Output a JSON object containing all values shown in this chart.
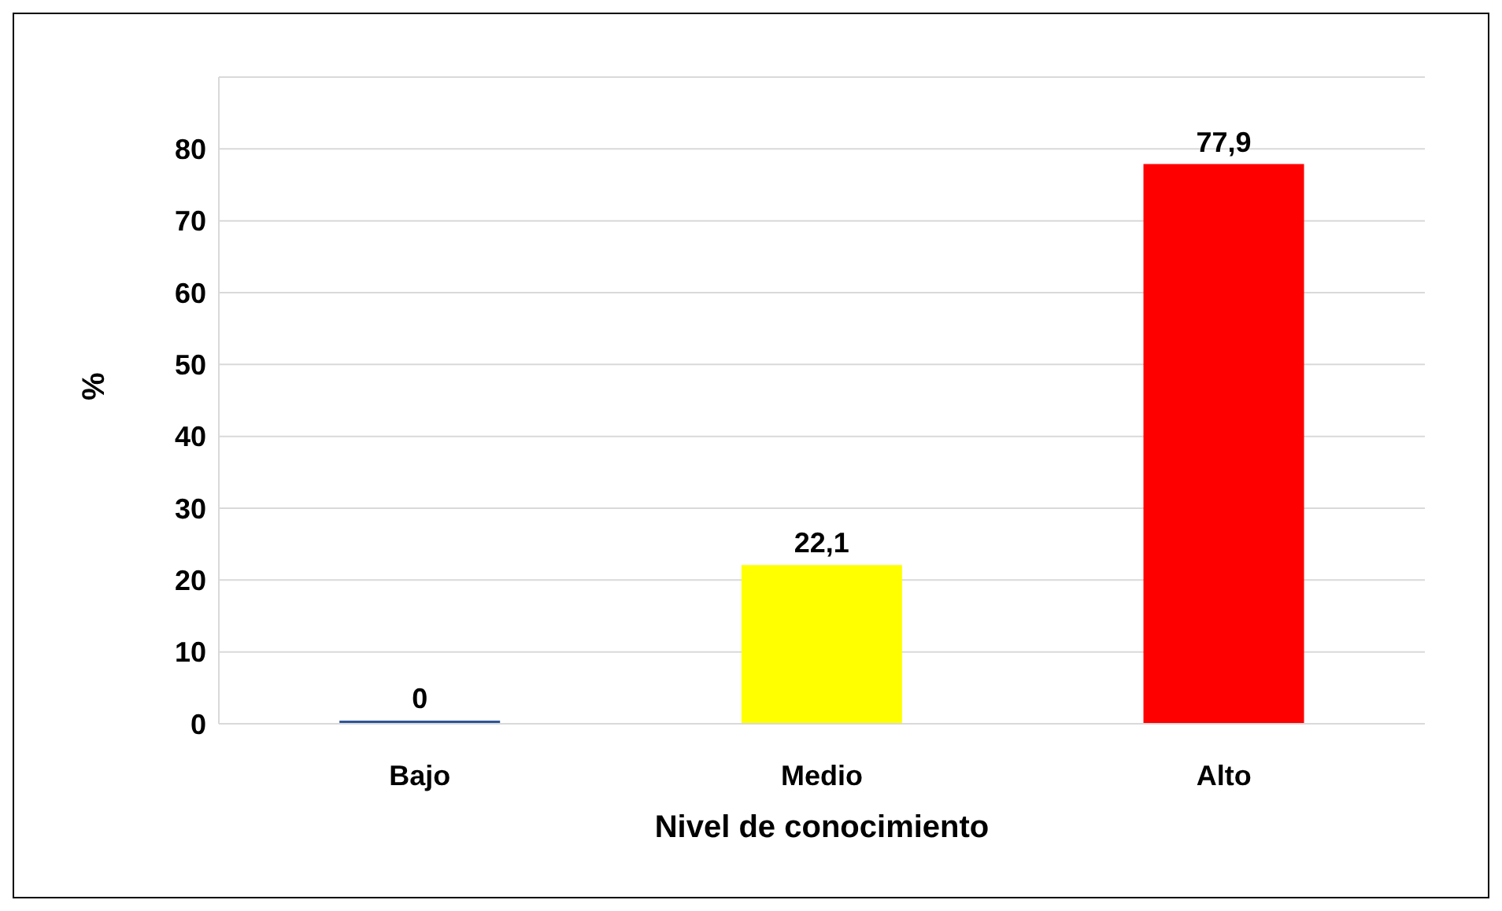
{
  "chart_data": {
    "type": "bar",
    "xlabel": "Nivel de conocimiento",
    "ylabel": "%",
    "categories": [
      "Bajo",
      "Medio",
      "Alto"
    ],
    "values": [
      0,
      22.1,
      77.9
    ],
    "colors": [
      "#2f5597",
      "#ffff00",
      "#ff0000"
    ],
    "value_labels": [
      "0",
      "22,1",
      "77,9"
    ],
    "ylim": [
      0,
      90
    ],
    "yticks": [
      0,
      10,
      20,
      30,
      40,
      50,
      60,
      70,
      80,
      {
        "value": 90,
        "label": null
      }
    ],
    "grid": "y"
  }
}
